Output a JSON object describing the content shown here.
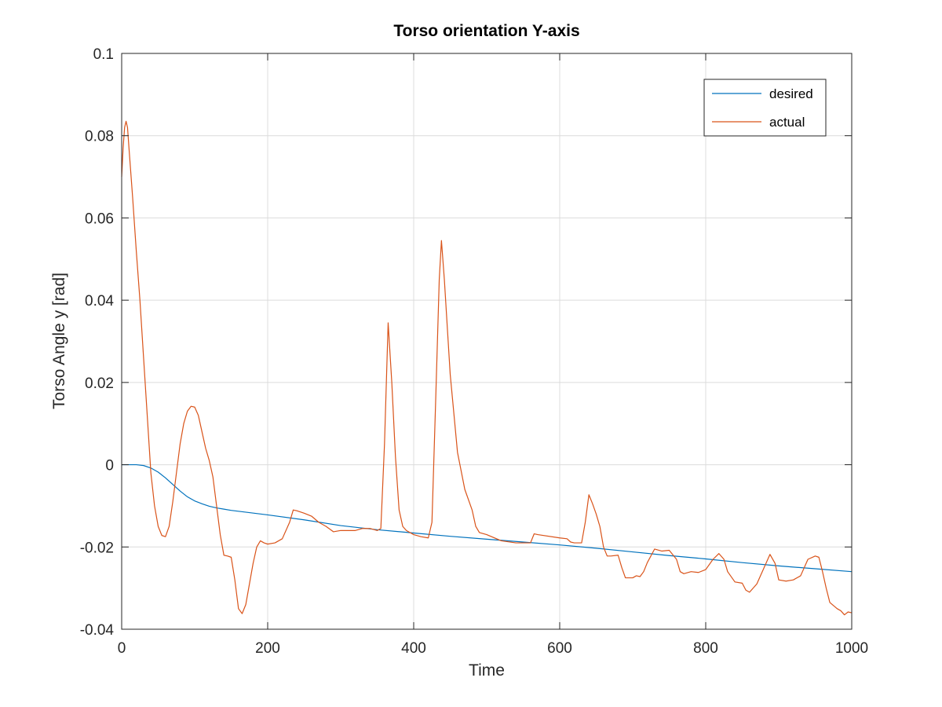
{
  "chart_data": {
    "type": "line",
    "title": "Torso orientation Y-axis",
    "xlabel": "Time",
    "ylabel": "Torso Angle y [rad]",
    "xlim": [
      0,
      1000
    ],
    "ylim": [
      -0.04,
      0.1
    ],
    "xticks": [
      0,
      200,
      400,
      600,
      800,
      1000
    ],
    "yticks": [
      -0.04,
      -0.02,
      0,
      0.02,
      0.04,
      0.06,
      0.08,
      0.1
    ],
    "xtick_labels": [
      "0",
      "200",
      "400",
      "600",
      "800",
      "1000"
    ],
    "ytick_labels": [
      "-0.04",
      "-0.02",
      "0",
      "0.02",
      "0.04",
      "0.06",
      "0.08",
      "0.1"
    ],
    "grid": true,
    "legend_position": "top-right",
    "series": [
      {
        "name": "desired",
        "color": "#0072BD",
        "points": [
          [
            0,
            0
          ],
          [
            10,
            0
          ],
          [
            20,
            0
          ],
          [
            30,
            -0.0002
          ],
          [
            40,
            -0.0008
          ],
          [
            50,
            -0.0018
          ],
          [
            60,
            -0.0032
          ],
          [
            70,
            -0.0048
          ],
          [
            80,
            -0.0064
          ],
          [
            90,
            -0.0078
          ],
          [
            100,
            -0.0088
          ],
          [
            110,
            -0.0095
          ],
          [
            120,
            -0.0101
          ],
          [
            130,
            -0.0105
          ],
          [
            140,
            -0.0108
          ],
          [
            150,
            -0.0111
          ],
          [
            200,
            -0.0122
          ],
          [
            250,
            -0.0134
          ],
          [
            300,
            -0.0148
          ],
          [
            350,
            -0.0158
          ],
          [
            400,
            -0.0166
          ],
          [
            450,
            -0.0174
          ],
          [
            500,
            -0.0181
          ],
          [
            550,
            -0.0188
          ],
          [
            600,
            -0.0195
          ],
          [
            650,
            -0.0203
          ],
          [
            700,
            -0.0212
          ],
          [
            750,
            -0.0221
          ],
          [
            800,
            -0.0229
          ],
          [
            850,
            -0.0238
          ],
          [
            900,
            -0.0246
          ],
          [
            950,
            -0.0253
          ],
          [
            1000,
            -0.026
          ]
        ]
      },
      {
        "name": "actual",
        "color": "#D95319",
        "points": [
          [
            0,
            0.07
          ],
          [
            2,
            0.077
          ],
          [
            4,
            0.082
          ],
          [
            6,
            0.0835
          ],
          [
            8,
            0.082
          ],
          [
            10,
            0.077
          ],
          [
            15,
            0.065
          ],
          [
            20,
            0.052
          ],
          [
            25,
            0.04
          ],
          [
            30,
            0.026
          ],
          [
            35,
            0.012
          ],
          [
            40,
            -0.002
          ],
          [
            45,
            -0.01
          ],
          [
            50,
            -0.015
          ],
          [
            55,
            -0.0172
          ],
          [
            60,
            -0.0175
          ],
          [
            65,
            -0.015
          ],
          [
            70,
            -0.009
          ],
          [
            75,
            -0.002
          ],
          [
            80,
            0.005
          ],
          [
            85,
            0.01
          ],
          [
            90,
            0.013
          ],
          [
            95,
            0.0142
          ],
          [
            100,
            0.014
          ],
          [
            105,
            0.012
          ],
          [
            110,
            0.008
          ],
          [
            115,
            0.004
          ],
          [
            120,
            0.001
          ],
          [
            125,
            -0.003
          ],
          [
            130,
            -0.01
          ],
          [
            135,
            -0.017
          ],
          [
            140,
            -0.022
          ],
          [
            145,
            -0.0222
          ],
          [
            150,
            -0.0225
          ],
          [
            155,
            -0.028
          ],
          [
            160,
            -0.035
          ],
          [
            165,
            -0.0362
          ],
          [
            170,
            -0.034
          ],
          [
            175,
            -0.029
          ],
          [
            180,
            -0.024
          ],
          [
            185,
            -0.02
          ],
          [
            190,
            -0.0185
          ],
          [
            195,
            -0.019
          ],
          [
            200,
            -0.0193
          ],
          [
            210,
            -0.019
          ],
          [
            220,
            -0.018
          ],
          [
            230,
            -0.014
          ],
          [
            235,
            -0.011
          ],
          [
            240,
            -0.0112
          ],
          [
            250,
            -0.0118
          ],
          [
            260,
            -0.0125
          ],
          [
            270,
            -0.014
          ],
          [
            280,
            -0.015
          ],
          [
            290,
            -0.0163
          ],
          [
            300,
            -0.016
          ],
          [
            310,
            -0.016
          ],
          [
            320,
            -0.016
          ],
          [
            330,
            -0.0155
          ],
          [
            340,
            -0.0155
          ],
          [
            350,
            -0.016
          ],
          [
            355,
            -0.0155
          ],
          [
            360,
            0.005
          ],
          [
            365,
            0.0345
          ],
          [
            370,
            0.02
          ],
          [
            375,
            0.002
          ],
          [
            380,
            -0.011
          ],
          [
            385,
            -0.015
          ],
          [
            390,
            -0.016
          ],
          [
            400,
            -0.017
          ],
          [
            410,
            -0.0175
          ],
          [
            420,
            -0.0178
          ],
          [
            425,
            -0.014
          ],
          [
            430,
            0.015
          ],
          [
            435,
            0.045
          ],
          [
            438,
            0.0545
          ],
          [
            442,
            0.045
          ],
          [
            450,
            0.022
          ],
          [
            460,
            0.003
          ],
          [
            470,
            -0.006
          ],
          [
            480,
            -0.011
          ],
          [
            485,
            -0.015
          ],
          [
            490,
            -0.0165
          ],
          [
            500,
            -0.017
          ],
          [
            520,
            -0.0185
          ],
          [
            540,
            -0.019
          ],
          [
            560,
            -0.019
          ],
          [
            565,
            -0.0168
          ],
          [
            570,
            -0.017
          ],
          [
            600,
            -0.0178
          ],
          [
            610,
            -0.018
          ],
          [
            615,
            -0.0188
          ],
          [
            620,
            -0.019
          ],
          [
            630,
            -0.019
          ],
          [
            635,
            -0.014
          ],
          [
            640,
            -0.0073
          ],
          [
            645,
            -0.0095
          ],
          [
            650,
            -0.012
          ],
          [
            655,
            -0.015
          ],
          [
            660,
            -0.02
          ],
          [
            665,
            -0.0222
          ],
          [
            670,
            -0.0222
          ],
          [
            680,
            -0.022
          ],
          [
            685,
            -0.025
          ],
          [
            690,
            -0.0275
          ],
          [
            700,
            -0.0275
          ],
          [
            705,
            -0.027
          ],
          [
            710,
            -0.0272
          ],
          [
            715,
            -0.026
          ],
          [
            720,
            -0.0238
          ],
          [
            730,
            -0.0205
          ],
          [
            740,
            -0.021
          ],
          [
            750,
            -0.0208
          ],
          [
            760,
            -0.023
          ],
          [
            765,
            -0.026
          ],
          [
            770,
            -0.0265
          ],
          [
            780,
            -0.026
          ],
          [
            790,
            -0.0262
          ],
          [
            800,
            -0.0255
          ],
          [
            810,
            -0.023
          ],
          [
            818,
            -0.0216
          ],
          [
            825,
            -0.023
          ],
          [
            830,
            -0.026
          ],
          [
            840,
            -0.0285
          ],
          [
            850,
            -0.0288
          ],
          [
            855,
            -0.0305
          ],
          [
            860,
            -0.031
          ],
          [
            870,
            -0.029
          ],
          [
            880,
            -0.025
          ],
          [
            888,
            -0.0218
          ],
          [
            895,
            -0.024
          ],
          [
            900,
            -0.028
          ],
          [
            910,
            -0.0283
          ],
          [
            920,
            -0.028
          ],
          [
            930,
            -0.027
          ],
          [
            940,
            -0.023
          ],
          [
            950,
            -0.0222
          ],
          [
            955,
            -0.0225
          ],
          [
            960,
            -0.026
          ],
          [
            965,
            -0.03
          ],
          [
            970,
            -0.0335
          ],
          [
            980,
            -0.035
          ],
          [
            985,
            -0.0355
          ],
          [
            990,
            -0.0365
          ],
          [
            995,
            -0.0358
          ],
          [
            1000,
            -0.036
          ]
        ]
      }
    ]
  }
}
